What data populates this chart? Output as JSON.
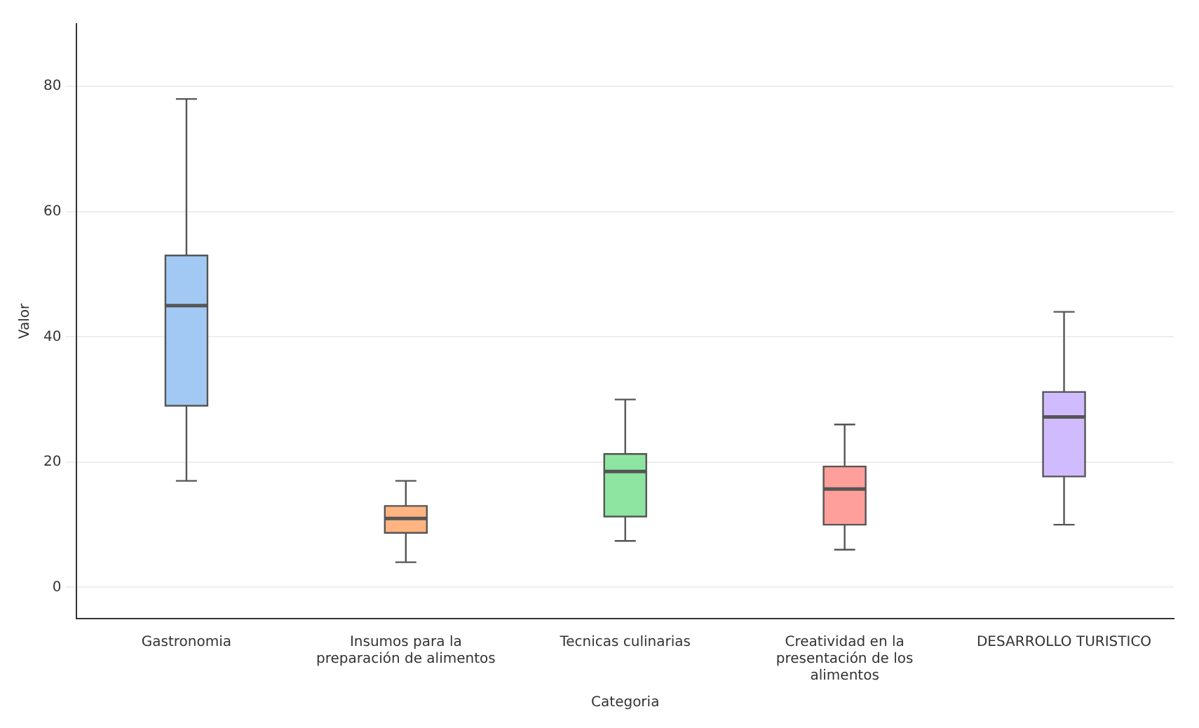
{
  "chart_data": {
    "type": "box",
    "xlabel": "Categoria",
    "ylabel": "Valor",
    "categories": [
      "Gastronomia",
      "Insumos para la preparación de alimentos",
      "Tecnicas culinarias",
      "Creatividad en la presentación de los alimentos",
      "DESARROLLO TURISTICO"
    ],
    "colors": [
      "#a1c9f4",
      "#ffb482",
      "#8de5a1",
      "#ff9f9b",
      "#d0bbff"
    ],
    "boxes": [
      {
        "low": 17,
        "q1": 29,
        "median": 45,
        "q3": 53,
        "high": 78
      },
      {
        "low": 4,
        "q1": 8.7,
        "median": 11,
        "q3": 13,
        "high": 17
      },
      {
        "low": 7.4,
        "q1": 11.3,
        "median": 18.5,
        "q3": 21.3,
        "high": 30
      },
      {
        "low": 6,
        "q1": 10,
        "median": 15.7,
        "q3": 19.3,
        "high": 26
      },
      {
        "low": 10,
        "q1": 17.7,
        "median": 27.2,
        "q3": 31.2,
        "high": 44
      }
    ],
    "ylim": [
      -5,
      90
    ],
    "yticks": [
      0,
      20,
      40,
      60,
      80
    ],
    "grid": "y"
  }
}
